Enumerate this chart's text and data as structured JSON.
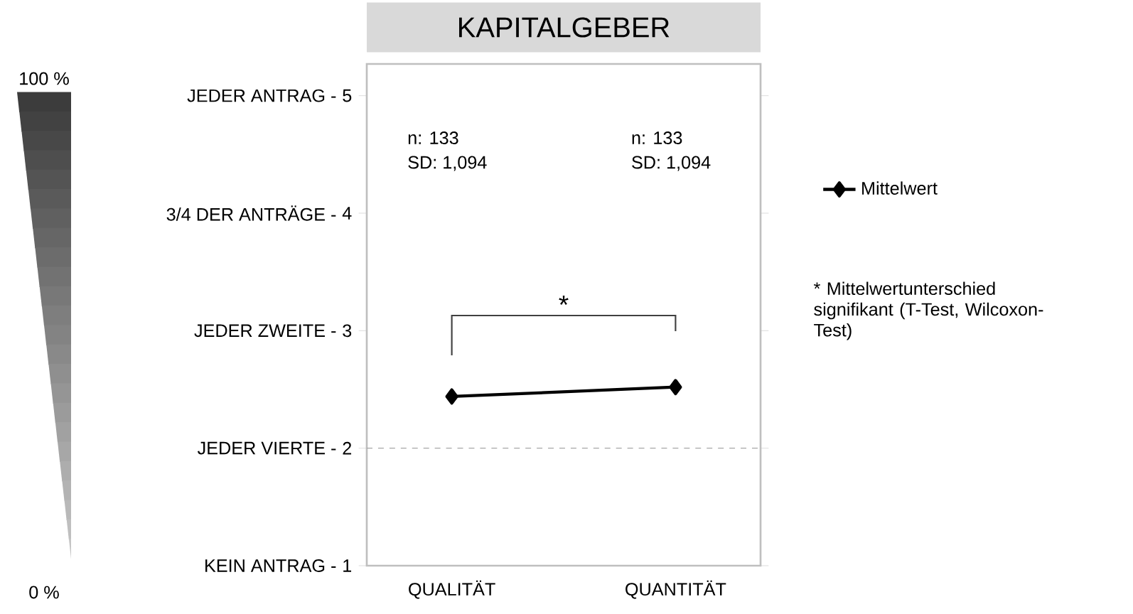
{
  "chart_data": {
    "type": "line",
    "title": "KAPITALGEBER",
    "categories": [
      "QUALITÄT",
      "QUANTITÄT"
    ],
    "series": [
      {
        "name": "Mittelwert",
        "color": "#000000",
        "values": [
          2.44,
          2.52
        ]
      }
    ],
    "marker": "diamond",
    "line_style": "solid",
    "legend": "right",
    "ylim": [
      1,
      5.27
    ],
    "yticks": [
      1,
      2,
      3,
      4,
      5
    ],
    "ref_lines": [
      {
        "axis": "y",
        "value": 2,
        "color": "#a6a6a6",
        "line_style": "dashed"
      }
    ],
    "annotations": [
      "KEIN ANTRAG  -",
      "JEDER  VIERTE -",
      "JEDER  ZWEITE -",
      "3/4 DER ANTRÄGE  -",
      "JEDER  ANTRAG  -",
      "n: 133",
      "SD: 1,094",
      "n: 133",
      "SD: 1,094",
      "*",
      "* Mittelwertunterschied signifikant (T-Test, Wilcoxon-Test)",
      "100 %",
      "0 %"
    ]
  }
}
